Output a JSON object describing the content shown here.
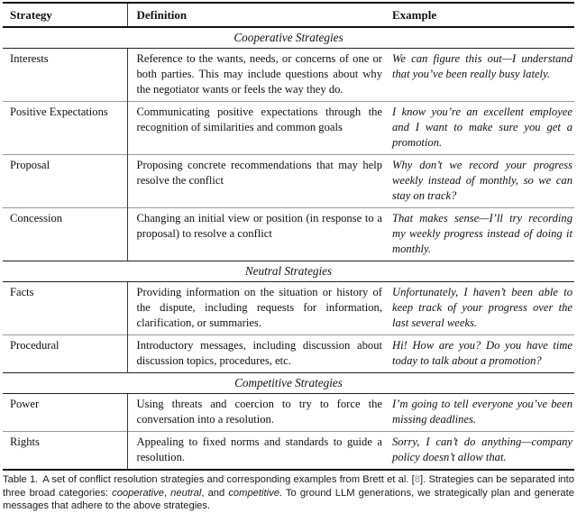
{
  "table": {
    "headers": {
      "strategy": "Strategy",
      "definition": "Definition",
      "example": "Example"
    },
    "sections": [
      {
        "title": "Cooperative Strategies",
        "rows": [
          {
            "strategy": "Interests",
            "definition": "Reference to the wants, needs, or concerns of one or both parties. This may include questions about why the negotiator wants or feels the way they do.",
            "example": "We can figure this out—I understand that you’ve been really busy lately."
          },
          {
            "strategy": "Positive Expectations",
            "definition": "Communicating positive expectations through the recognition of similarities and common goals",
            "example": "I know you’re an excellent employee and I want to make sure you get a promotion."
          },
          {
            "strategy": "Proposal",
            "definition": "Proposing concrete recommendations that may help resolve the conflict",
            "example": "Why don’t we record your progress weekly instead of monthly, so we can stay on track?"
          },
          {
            "strategy": "Concession",
            "definition": "Changing an initial view or position (in response to a proposal) to resolve a conflict",
            "example": "That makes sense—I’ll try recording my weekly progress instead of doing it monthly."
          }
        ]
      },
      {
        "title": "Neutral Strategies",
        "rows": [
          {
            "strategy": "Facts",
            "definition": "Providing information on the situation or history of the dispute, including requests for information, clarification, or summaries.",
            "example": "Unfortunately, I haven’t been able to keep track of your progress over the last several weeks."
          },
          {
            "strategy": "Procedural",
            "definition": "Introductory messages, including discussion about discussion topics, procedures, etc.",
            "example": "Hi! How are you? Do you have time today to talk about a promotion?"
          }
        ]
      },
      {
        "title": "Competitive Strategies",
        "rows": [
          {
            "strategy": "Power",
            "definition": "Using threats and coercion to try to force the conversation into a resolution.",
            "example": "I’m going to tell everyone you’ve been missing deadlines."
          },
          {
            "strategy": "Rights",
            "definition": "Appealing to fixed norms and standards to guide a resolution.",
            "example": "Sorry, I can’t do anything—company policy doesn’t allow that."
          }
        ]
      }
    ]
  },
  "caption": {
    "label": "Table 1.",
    "part1": "A set of conflict resolution strategies and corresponding examples from Brett et al. ",
    "cite_open": "[",
    "cite_num": "8",
    "cite_close": "]",
    "part2": ". Strategies can be separated into three broad categories: ",
    "word1": "cooperative",
    "sep1": ", ",
    "word2": "neutral",
    "sep2": ", and ",
    "word3": "competitive",
    "part3": ". To ground LLM generations, we strategically plan and generate messages that adhere to the above strategies."
  },
  "colors": {
    "text": "#111111",
    "rule_dark": "#111111",
    "rule_section": "#222222",
    "rule_row": "#999999",
    "citation": "#8a8a8a"
  }
}
